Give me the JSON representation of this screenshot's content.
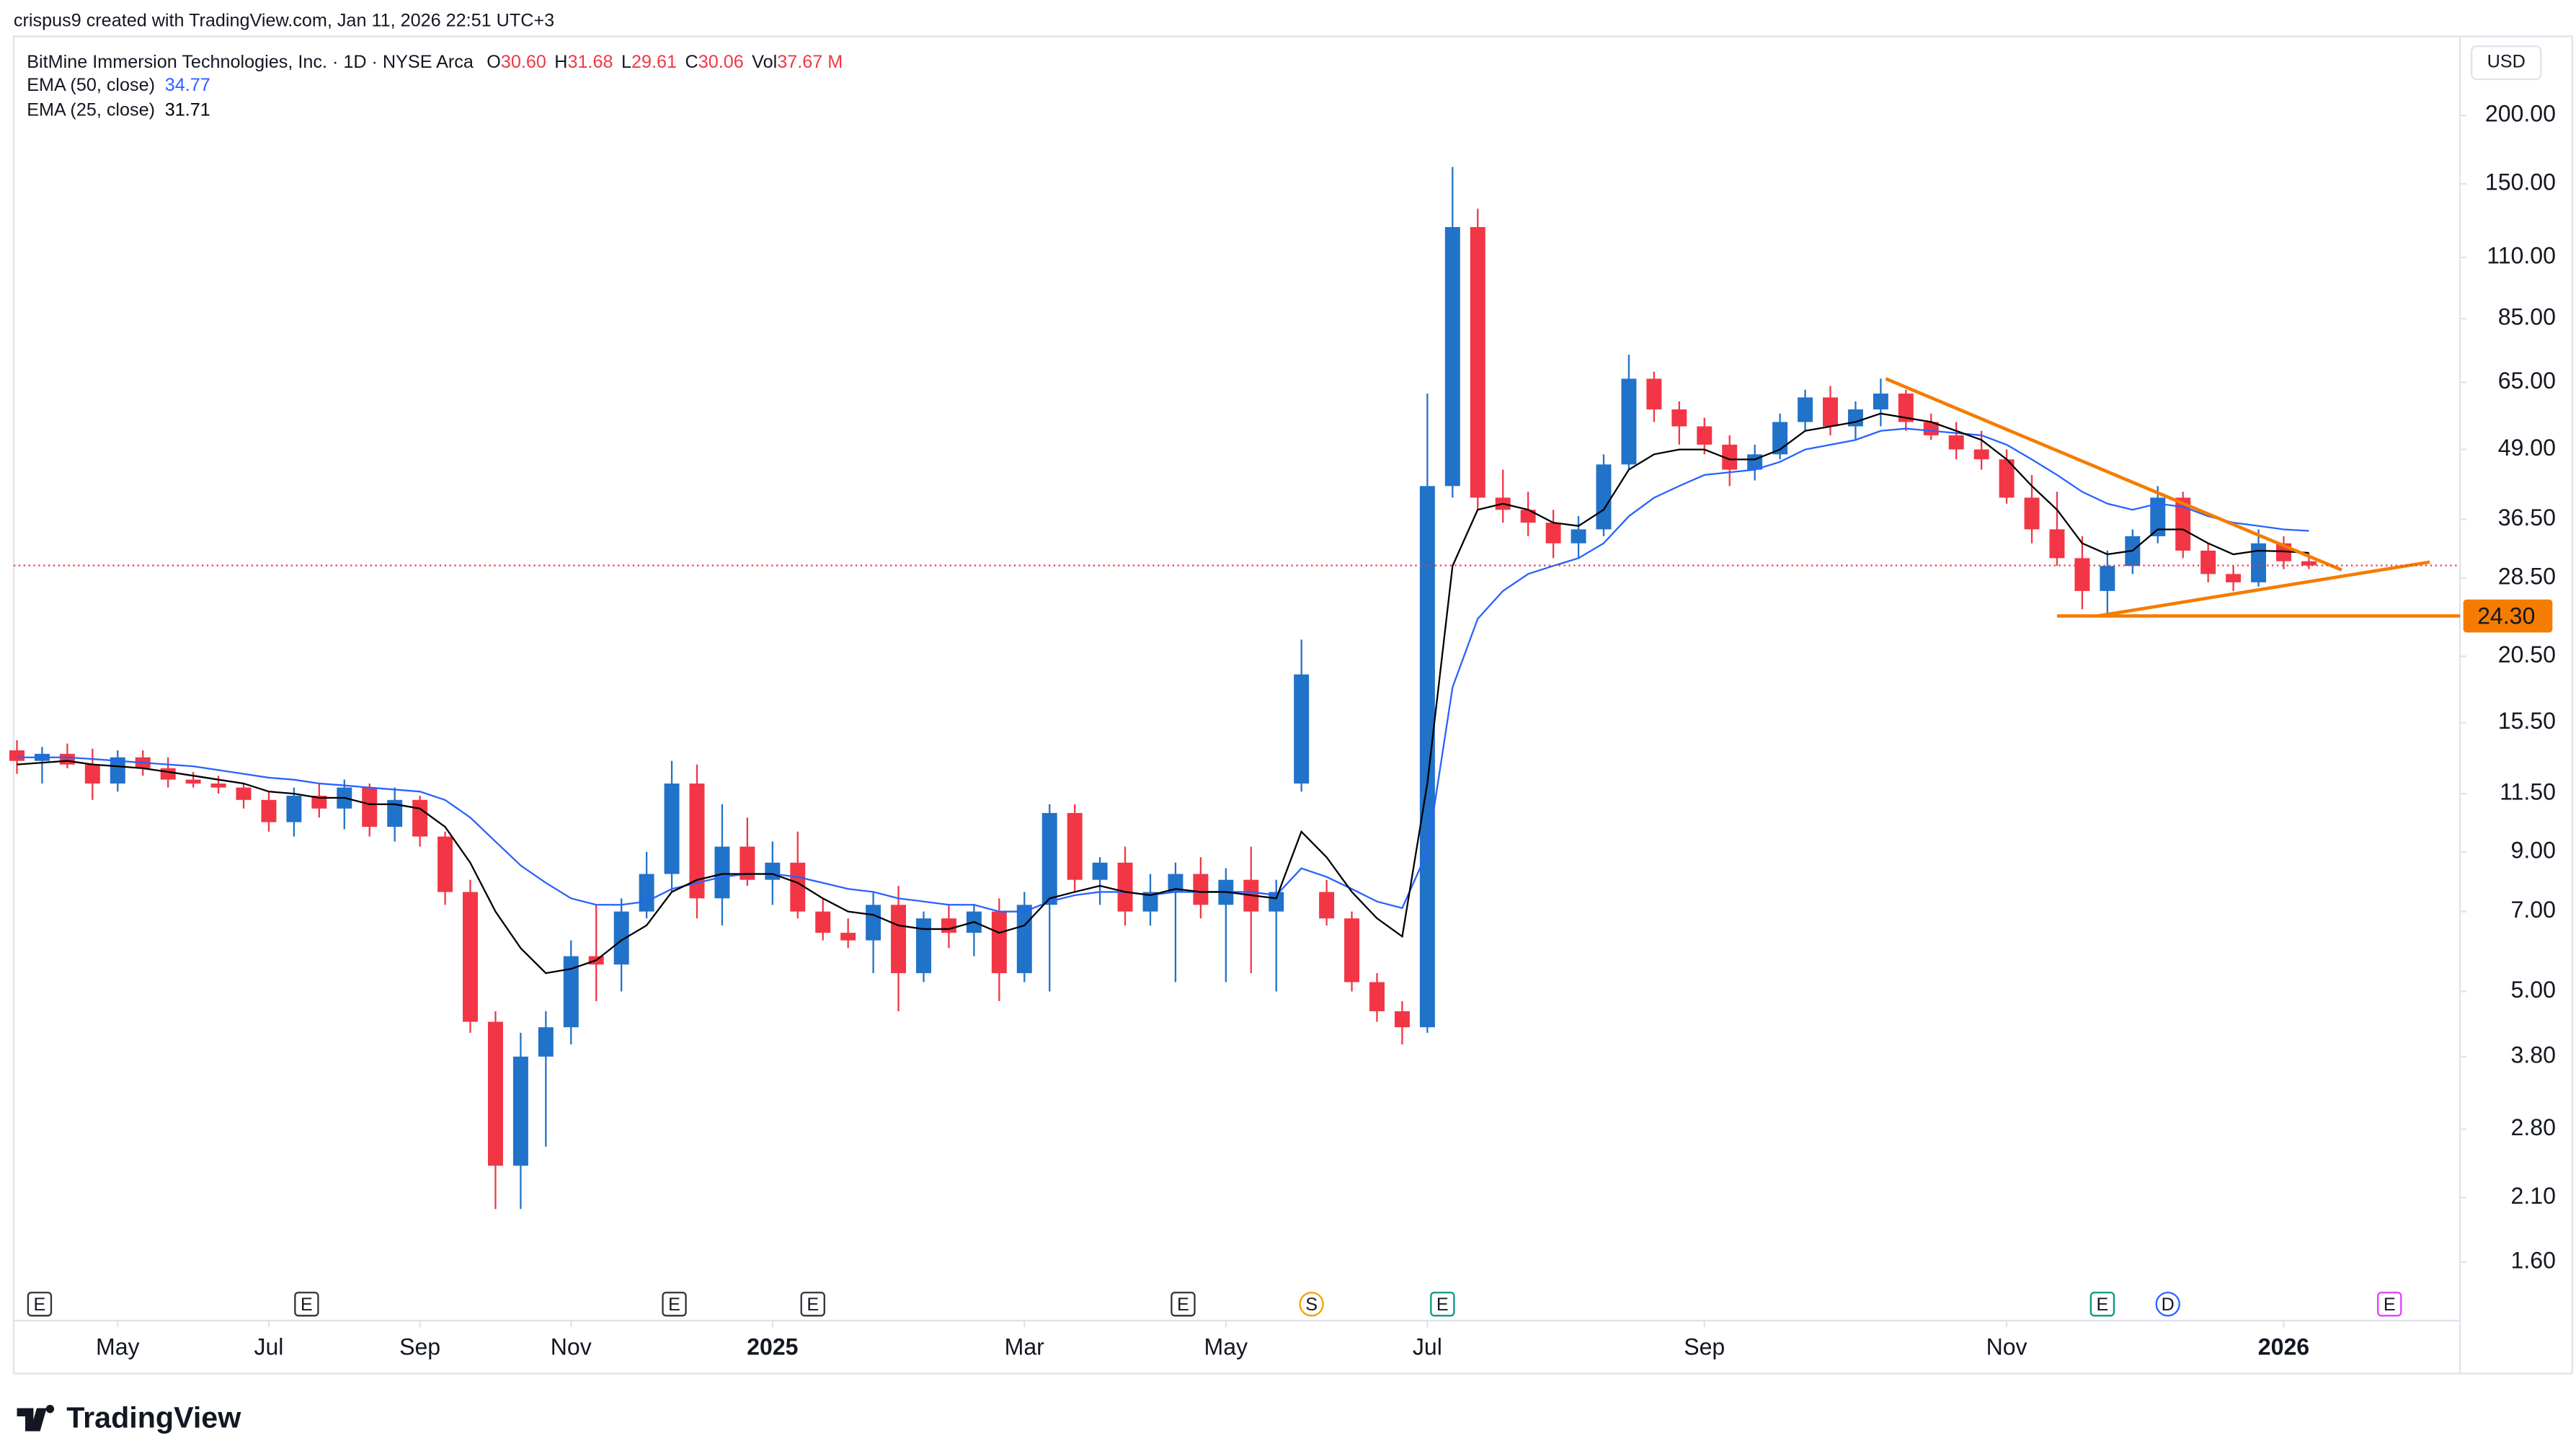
{
  "header": {
    "author_line": "crispus9 created with TradingView.com, Jan 11, 2026 22:51 UTC+3",
    "logo": "TradingView",
    "currency": "USD"
  },
  "chart_data": {
    "type": "candlestick",
    "title": "BitMine Immersion Technologies, Inc. · 1D · NYSE Arca",
    "ohlc_legend": [
      {
        "label": "O",
        "value": "30.60"
      },
      {
        "label": "H",
        "value": "31.68"
      },
      {
        "label": "L",
        "value": "29.61"
      },
      {
        "label": "C",
        "value": "30.06"
      },
      {
        "label": "Vol",
        "value": "37.67 M"
      }
    ],
    "log_scale": true,
    "up_color": "#2172c9",
    "down_color": "#f23645",
    "xlim": [
      0,
      97
    ],
    "ylim": [
      1.25,
      283
    ],
    "yticks": [
      {
        "value": 200,
        "label": "200.00"
      },
      {
        "value": 150,
        "label": "150.00"
      },
      {
        "value": 110,
        "label": "110.00"
      },
      {
        "value": 85,
        "label": "85.00"
      },
      {
        "value": 65,
        "label": "65.00"
      },
      {
        "value": 49,
        "label": "49.00"
      },
      {
        "value": 36.5,
        "label": "36.50"
      },
      {
        "value": 28.5,
        "label": "28.50"
      },
      {
        "value": 20.5,
        "label": "20.50"
      },
      {
        "value": 15.5,
        "label": "15.50"
      },
      {
        "value": 11.5,
        "label": "11.50"
      },
      {
        "value": 9,
        "label": "9.00"
      },
      {
        "value": 7,
        "label": "7.00"
      },
      {
        "value": 5,
        "label": "5.00"
      },
      {
        "value": 3.8,
        "label": "3.80"
      },
      {
        "value": 2.8,
        "label": "2.80"
      },
      {
        "value": 2.1,
        "label": "2.10"
      },
      {
        "value": 1.6,
        "label": "1.60"
      }
    ],
    "xticks": [
      {
        "value": 4,
        "label": "May"
      },
      {
        "value": 10,
        "label": "Jul"
      },
      {
        "value": 16,
        "label": "Sep"
      },
      {
        "value": 22,
        "label": "Nov"
      },
      {
        "value": 30,
        "label": "2025"
      },
      {
        "value": 40,
        "label": "Mar"
      },
      {
        "value": 48,
        "label": "May"
      },
      {
        "value": 56,
        "label": "Jul"
      },
      {
        "value": 67,
        "label": "Sep"
      },
      {
        "value": 79,
        "label": "Nov"
      },
      {
        "value": 90,
        "label": "2026"
      }
    ],
    "open": [
      13.8,
      13.2,
      13.6,
      13.0,
      12.0,
      13.4,
      12.8,
      12.2,
      12.0,
      11.8,
      11.2,
      10.2,
      11.4,
      10.8,
      11.8,
      10.0,
      11.2,
      9.6,
      7.6,
      4.4,
      2.4,
      3.8,
      4.3,
      5.8,
      5.6,
      7.0,
      8.2,
      12.0,
      7.4,
      9.2,
      8.0,
      8.6,
      7.0,
      6.4,
      6.2,
      7.2,
      5.4,
      6.8,
      6.4,
      7.0,
      5.4,
      7.2,
      10.6,
      8.0,
      8.6,
      7.0,
      7.6,
      8.2,
      7.2,
      8.0,
      7.0,
      12.0,
      7.6,
      6.8,
      5.2,
      4.6,
      4.3,
      42,
      125,
      40,
      38,
      36,
      33,
      35,
      46,
      66,
      58,
      54,
      50,
      45,
      48,
      55,
      61,
      54,
      58,
      62,
      55,
      52,
      49,
      47,
      40,
      35,
      31,
      27,
      30,
      34,
      40,
      32,
      29,
      28,
      33,
      30.6
    ],
    "high": [
      14.4,
      14.0,
      14.2,
      13.9,
      13.8,
      13.8,
      13.4,
      12.6,
      12.4,
      12.0,
      11.6,
      11.8,
      12.0,
      12.2,
      12.0,
      11.8,
      11.4,
      9.8,
      8.0,
      4.6,
      4.2,
      4.6,
      6.2,
      7.2,
      7.4,
      9.0,
      13.2,
      13.0,
      11.0,
      10.4,
      9.4,
      9.8,
      7.4,
      6.8,
      7.6,
      7.8,
      7.0,
      7.2,
      7.2,
      7.4,
      7.6,
      11.0,
      11.0,
      8.8,
      9.2,
      8.2,
      8.6,
      8.8,
      8.4,
      9.2,
      8.0,
      22.0,
      8.0,
      7.0,
      5.4,
      4.8,
      62,
      161,
      135,
      45,
      41,
      38,
      37,
      48,
      73,
      68,
      60,
      56,
      52,
      50,
      57,
      63,
      64,
      60,
      66,
      63,
      57,
      55,
      53,
      49,
      44,
      41,
      34,
      32,
      35,
      42,
      41,
      33,
      30,
      35,
      34,
      31.68
    ],
    "low": [
      12.5,
      12.0,
      12.8,
      11.2,
      11.6,
      12.4,
      11.8,
      11.8,
      11.5,
      10.8,
      9.8,
      9.6,
      10.4,
      9.9,
      9.6,
      9.4,
      9.2,
      7.2,
      4.2,
      2.0,
      2.0,
      2.6,
      4.0,
      4.8,
      5.0,
      6.8,
      7.6,
      6.8,
      6.6,
      7.8,
      7.2,
      6.8,
      6.2,
      6.0,
      5.4,
      4.6,
      5.2,
      6.0,
      5.8,
      4.8,
      5.2,
      5.0,
      7.6,
      7.2,
      6.6,
      6.6,
      5.2,
      6.8,
      5.2,
      5.4,
      5.0,
      11.6,
      6.6,
      5.0,
      4.4,
      4.0,
      4.2,
      40,
      38,
      36,
      34,
      31,
      31,
      34,
      45,
      55,
      50,
      48,
      42,
      43,
      47,
      53,
      52,
      51,
      54,
      53,
      51,
      47,
      45,
      39,
      33,
      30,
      25,
      24.3,
      29,
      33,
      31,
      28,
      27,
      27.5,
      29.6,
      29.61
    ],
    "close": [
      13.2,
      13.6,
      13.0,
      12.0,
      13.4,
      12.8,
      12.2,
      12.0,
      11.8,
      11.2,
      10.2,
      11.4,
      10.8,
      11.8,
      10.0,
      11.2,
      9.6,
      7.6,
      4.4,
      2.4,
      3.8,
      4.3,
      5.8,
      5.6,
      7.0,
      8.2,
      12.0,
      7.4,
      9.2,
      8.0,
      8.6,
      7.0,
      6.4,
      6.2,
      7.2,
      5.4,
      6.8,
      6.4,
      7.0,
      5.4,
      7.2,
      10.6,
      8.0,
      8.6,
      7.0,
      7.6,
      8.2,
      7.2,
      8.0,
      7.0,
      7.6,
      19.0,
      6.8,
      5.2,
      4.6,
      4.3,
      42,
      125,
      40,
      38,
      36,
      33,
      35,
      46,
      66,
      58,
      54,
      50,
      45,
      48,
      55,
      61,
      54,
      58,
      62,
      55,
      52,
      49,
      47,
      40,
      35,
      31,
      27,
      30,
      34,
      40,
      32,
      29,
      28,
      33,
      30.6,
      30.06
    ],
    "series": [
      {
        "name": "EMA (50, close)",
        "value_label": "34.77",
        "color": "#2962ff",
        "values": [
          13.4,
          13.4,
          13.4,
          13.3,
          13.2,
          13.1,
          13.0,
          12.9,
          12.7,
          12.5,
          12.3,
          12.2,
          12.0,
          11.9,
          11.8,
          11.7,
          11.6,
          11.2,
          10.4,
          9.4,
          8.5,
          7.9,
          7.4,
          7.2,
          7.2,
          7.3,
          7.7,
          7.9,
          8.1,
          8.2,
          8.2,
          8.1,
          7.9,
          7.7,
          7.6,
          7.4,
          7.3,
          7.2,
          7.2,
          7.0,
          7.0,
          7.3,
          7.5,
          7.6,
          7.6,
          7.5,
          7.6,
          7.6,
          7.6,
          7.6,
          7.5,
          8.4,
          8.1,
          7.7,
          7.3,
          7.1,
          9,
          18,
          24,
          27,
          29,
          30,
          31,
          33,
          37,
          40,
          42,
          44,
          44.5,
          45,
          46.5,
          49,
          50,
          51,
          53,
          53.5,
          53,
          52.5,
          52,
          50,
          47,
          44,
          41,
          39,
          38,
          39,
          38.5,
          37,
          36,
          35.5,
          35,
          34.77
        ]
      },
      {
        "name": "EMA (25, close)",
        "value_label": "31.71",
        "color": "#000000",
        "values": [
          13.0,
          13.1,
          13.2,
          13.0,
          12.9,
          12.8,
          12.6,
          12.4,
          12.2,
          12.0,
          11.6,
          11.5,
          11.3,
          11.3,
          11.0,
          11.0,
          10.8,
          10.0,
          8.6,
          7.0,
          6.0,
          5.4,
          5.5,
          5.7,
          6.2,
          6.6,
          7.6,
          8.0,
          8.2,
          8.2,
          8.2,
          7.9,
          7.4,
          7.0,
          6.9,
          6.6,
          6.5,
          6.5,
          6.7,
          6.4,
          6.6,
          7.4,
          7.6,
          7.8,
          7.6,
          7.5,
          7.7,
          7.6,
          7.6,
          7.5,
          7.4,
          9.8,
          8.8,
          7.6,
          6.8,
          6.3,
          12,
          30,
          38,
          39,
          38,
          36,
          35.5,
          38,
          45,
          48,
          49,
          49,
          47,
          47,
          49,
          53,
          54,
          55,
          57,
          56,
          55,
          53,
          51,
          47,
          42,
          38,
          33,
          31.5,
          32,
          35,
          35,
          33,
          31.5,
          32,
          31.9,
          31.71
        ]
      }
    ],
    "trendlines": [
      {
        "color": "#f57c00",
        "points": [
          {
            "x": 74.2,
            "y": 66
          },
          {
            "x": 92.3,
            "y": 29.5
          }
        ]
      },
      {
        "color": "#f57c00",
        "points": [
          {
            "x": 82.6,
            "y": 24.3
          },
          {
            "x": 95.8,
            "y": 30.5
          }
        ]
      }
    ],
    "level": {
      "value": 24.3,
      "label": "24.30",
      "from": 81,
      "color": "#f57c00"
    },
    "events": [
      {
        "x": 0.9,
        "label": "E",
        "color": "#333333"
      },
      {
        "x": 11.5,
        "label": "E",
        "color": "#333333"
      },
      {
        "x": 26.1,
        "label": "E",
        "color": "#333333"
      },
      {
        "x": 31.6,
        "label": "E",
        "color": "#333333"
      },
      {
        "x": 46.3,
        "label": "E",
        "color": "#333333"
      },
      {
        "x": 51.4,
        "label": "S",
        "color": "#f59d00"
      },
      {
        "x": 56.6,
        "label": "E",
        "color": "#089981"
      },
      {
        "x": 82.8,
        "label": "E",
        "color": "#089981"
      },
      {
        "x": 85.4,
        "label": "D",
        "color": "#2962ff"
      },
      {
        "x": 94.2,
        "label": "E",
        "color": "#e040fb"
      }
    ]
  }
}
